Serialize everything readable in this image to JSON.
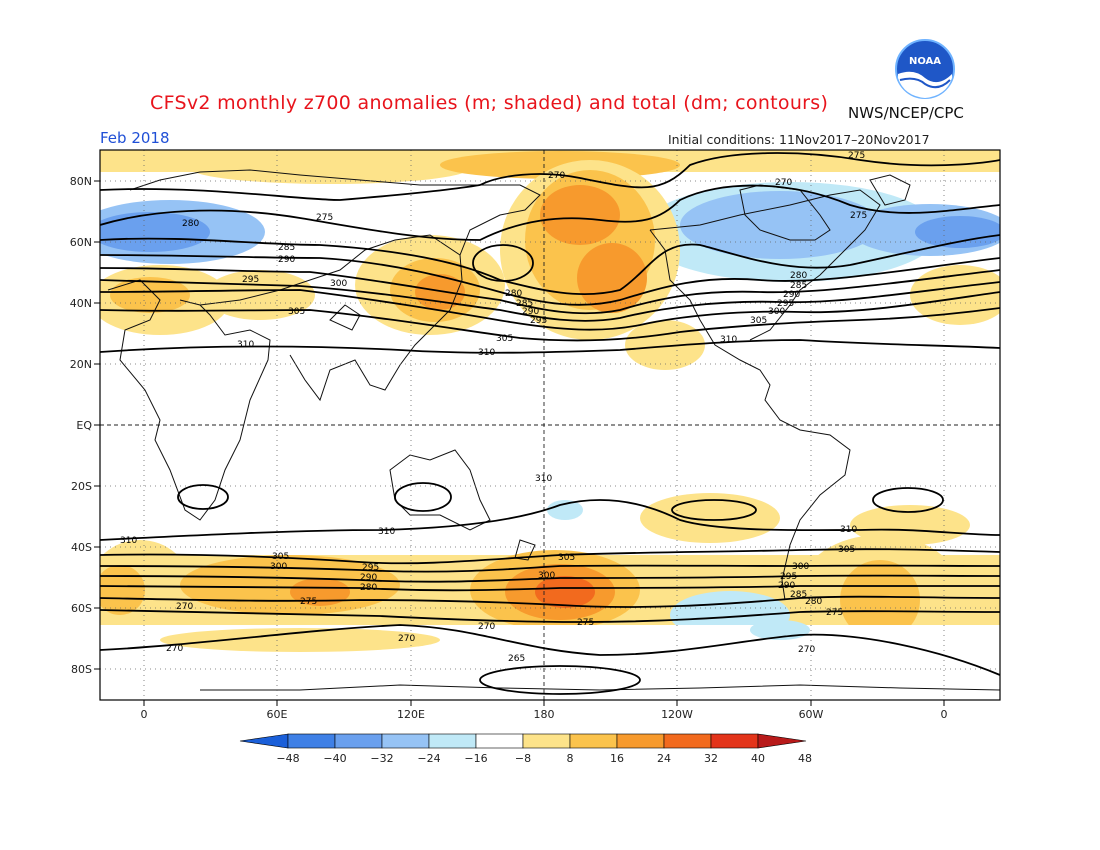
{
  "title": "CFSv2 monthly z700 anomalies (m; shaded) and total (dm; contours)",
  "agency": "NWS/NCEP/CPC",
  "logo_text": "NOAA",
  "valid_month": "Feb 2018",
  "initial_conditions": "Initial conditions: 11Nov2017–20Nov2017",
  "lat_labels": [
    "80N",
    "60N",
    "40N",
    "20N",
    "EQ",
    "20S",
    "40S",
    "60S",
    "80S"
  ],
  "lon_labels": [
    "0",
    "60E",
    "120E",
    "180",
    "120W",
    "60W",
    "0"
  ],
  "colorbar": {
    "ticks": [
      "−48",
      "−40",
      "−32",
      "−24",
      "−16",
      "−8",
      "8",
      "16",
      "24",
      "32",
      "40",
      "48"
    ],
    "colors": [
      "#1a5fd9",
      "#3f80e6",
      "#6aa0ee",
      "#96c3f5",
      "#c0e9f7",
      "#ffffff",
      "#fde38a",
      "#fbc34c",
      "#f79a2d",
      "#f26a1e",
      "#e3341a",
      "#b81a1a"
    ]
  },
  "contour_labels": [
    "275",
    "280",
    "285",
    "290",
    "295",
    "300",
    "305",
    "310",
    "270",
    "265"
  ],
  "colors": {
    "title": "#e8141c",
    "valid": "#1f4fd6",
    "logo": "#1f57c7"
  }
}
